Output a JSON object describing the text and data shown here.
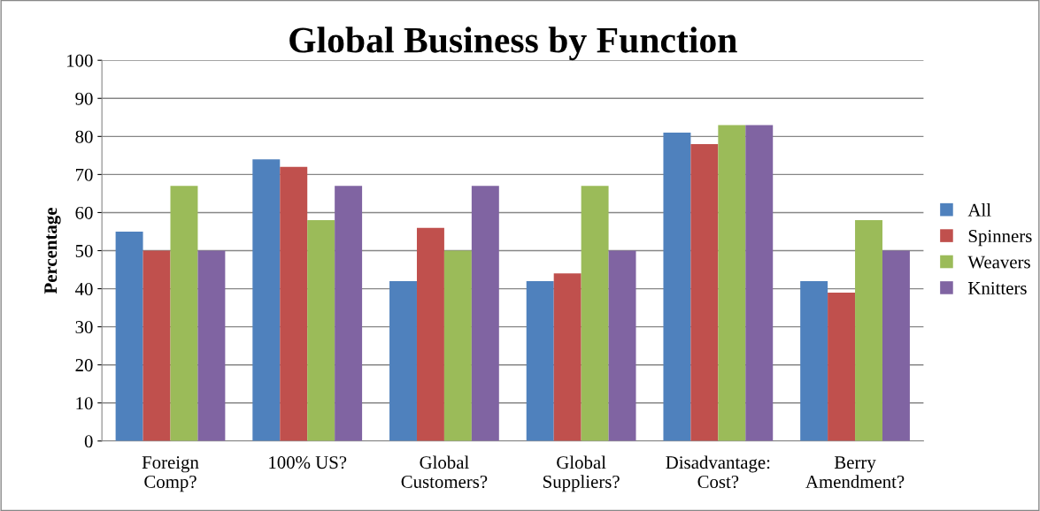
{
  "chart_data": {
    "type": "bar",
    "title": "Global Business by Function",
    "ylabel": "Percentage",
    "categories": [
      "Foreign\nComp?",
      "100% US?",
      "Global\nCustomers?",
      "Global\nSuppliers?",
      "Disadvantage:\nCost?",
      "Berry\nAmendment?"
    ],
    "series": [
      {
        "name": "All",
        "color": "#4f81bd",
        "values": [
          55,
          74,
          42,
          42,
          81,
          42
        ]
      },
      {
        "name": "Spinners",
        "color": "#c0504d",
        "values": [
          50,
          72,
          56,
          44,
          78,
          39
        ]
      },
      {
        "name": "Weavers",
        "color": "#9bbb59",
        "values": [
          67,
          58,
          50,
          67,
          83,
          58
        ]
      },
      {
        "name": "Knitters",
        "color": "#8064a2",
        "values": [
          50,
          67,
          67,
          50,
          83,
          50
        ]
      }
    ],
    "ylim": [
      0,
      100
    ],
    "yticks": [
      0,
      10,
      20,
      30,
      40,
      50,
      60,
      70,
      80,
      90,
      100
    ],
    "grid": "y",
    "legend": "right"
  }
}
